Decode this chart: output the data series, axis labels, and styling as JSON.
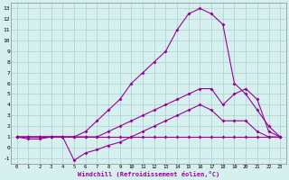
{
  "xlabel": "Windchill (Refroidissement éolien,°C)",
  "background_color": "#d6f0f0",
  "grid_color": "#aacfcf",
  "line_color": "#990099",
  "xlim": [
    -0.5,
    23.5
  ],
  "ylim": [
    -1.5,
    13.5
  ],
  "xticks": [
    0,
    1,
    2,
    3,
    4,
    5,
    6,
    7,
    8,
    9,
    10,
    11,
    12,
    13,
    14,
    15,
    16,
    17,
    18,
    19,
    20,
    21,
    22,
    23
  ],
  "yticks": [
    -1,
    0,
    1,
    2,
    3,
    4,
    5,
    6,
    7,
    8,
    9,
    10,
    11,
    12,
    13
  ],
  "line1_x": [
    0,
    1,
    2,
    3,
    4,
    5,
    6,
    7,
    8,
    9,
    10,
    11,
    12,
    13,
    14,
    15,
    16,
    17,
    18,
    19,
    20,
    21,
    22,
    23
  ],
  "line1_y": [
    1,
    1,
    1,
    1,
    1,
    1,
    1,
    1,
    1,
    1,
    1,
    1,
    1,
    1,
    1,
    1,
    1,
    1,
    1,
    1,
    1,
    1,
    1,
    1
  ],
  "line2_x": [
    0,
    1,
    2,
    3,
    4,
    5,
    6,
    7,
    8,
    9,
    10,
    11,
    12,
    13,
    14,
    15,
    16,
    17,
    18,
    19,
    20,
    21,
    22,
    23
  ],
  "line2_y": [
    1,
    0.8,
    0.8,
    1,
    1,
    -1.2,
    -0.5,
    -0.2,
    0.2,
    0.5,
    1,
    1.5,
    2,
    2.5,
    3,
    3.5,
    4,
    3.5,
    2.5,
    2.5,
    2.5,
    1.5,
    1,
    1
  ],
  "line3_x": [
    0,
    1,
    2,
    3,
    4,
    5,
    6,
    7,
    8,
    9,
    10,
    11,
    12,
    13,
    14,
    15,
    16,
    17,
    18,
    19,
    20,
    21,
    22,
    23
  ],
  "line3_y": [
    1,
    1,
    1,
    1,
    1,
    1,
    1.5,
    2.5,
    3.5,
    4.5,
    6,
    7,
    8,
    9,
    11,
    12.5,
    13,
    12.5,
    11.5,
    6,
    5,
    3.5,
    2,
    1
  ],
  "line4_x": [
    0,
    1,
    2,
    3,
    4,
    5,
    6,
    7,
    8,
    9,
    10,
    11,
    12,
    13,
    14,
    15,
    16,
    17,
    18,
    19,
    20,
    21,
    22,
    23
  ],
  "line4_y": [
    1,
    1,
    1,
    1,
    1,
    1,
    1,
    1,
    1.5,
    2,
    2.5,
    3,
    3.5,
    4,
    4.5,
    5,
    5.5,
    5.5,
    4,
    5,
    5.5,
    4.5,
    1.5,
    1
  ]
}
